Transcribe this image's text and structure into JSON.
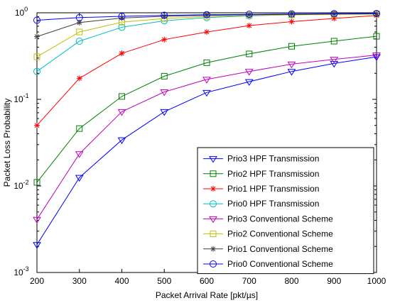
{
  "chart_data": {
    "type": "line",
    "xlabel": "Packet Arrival Rate [pkt/µs]",
    "ylabel": "Packet Loss Probability",
    "x": [
      200,
      300,
      400,
      500,
      600,
      700,
      800,
      900,
      1000
    ],
    "xlim": [
      200,
      1000
    ],
    "ylim": [
      0.001,
      1
    ],
    "yscale": "log",
    "grid": false,
    "legend_position": "bottom-right",
    "x_tick_labels": [
      "200",
      "300",
      "400",
      "500",
      "600",
      "700",
      "800",
      "900",
      "1000"
    ],
    "y_tick_labels": [
      {
        "base": "10",
        "exp": "-3"
      },
      {
        "base": "10",
        "exp": "-2"
      },
      {
        "base": "10",
        "exp": "-1"
      },
      {
        "base": "10",
        "exp": "0"
      }
    ],
    "series": [
      {
        "name": "Prio3 HPF Transmission",
        "color": "#0000ff",
        "marker": "triangle-down",
        "values": [
          0.0021,
          0.0125,
          0.034,
          0.072,
          0.12,
          0.16,
          0.21,
          0.26,
          0.31
        ]
      },
      {
        "name": "Prio2 HPF Transmission",
        "color": "#008000",
        "marker": "square",
        "values": [
          0.011,
          0.046,
          0.108,
          0.185,
          0.265,
          0.335,
          0.41,
          0.47,
          0.535
        ]
      },
      {
        "name": "Prio1 HPF Transmission",
        "color": "#ff0000",
        "marker": "star",
        "values": [
          0.05,
          0.175,
          0.34,
          0.49,
          0.6,
          0.71,
          0.79,
          0.86,
          0.93
        ]
      },
      {
        "name": "Prio0 HPF Transmission",
        "color": "#00bfbf",
        "marker": "circle",
        "values": [
          0.21,
          0.47,
          0.68,
          0.81,
          0.88,
          0.92,
          0.95,
          0.965,
          0.975
        ]
      },
      {
        "name": "Prio3 Conventional Scheme",
        "color": "#bf00bf",
        "marker": "triangle-down",
        "values": [
          0.0041,
          0.0235,
          0.072,
          0.122,
          0.17,
          0.21,
          0.255,
          0.29,
          0.325
        ]
      },
      {
        "name": "Prio2 Conventional Scheme",
        "color": "#bfbf00",
        "marker": "square",
        "values": [
          0.31,
          0.6,
          0.78,
          0.86,
          0.905,
          0.93,
          0.945,
          0.955,
          0.965
        ]
      },
      {
        "name": "Prio1 Conventional Scheme",
        "color": "#404040",
        "marker": "star",
        "values": [
          0.53,
          0.77,
          0.87,
          0.91,
          0.935,
          0.95,
          0.96,
          0.97,
          0.975
        ]
      },
      {
        "name": "Prio0 Conventional Scheme",
        "color": "#0000ff",
        "marker": "circle",
        "values": [
          0.82,
          0.88,
          0.91,
          0.935,
          0.95,
          0.96,
          0.97,
          0.975,
          0.98
        ]
      }
    ]
  }
}
